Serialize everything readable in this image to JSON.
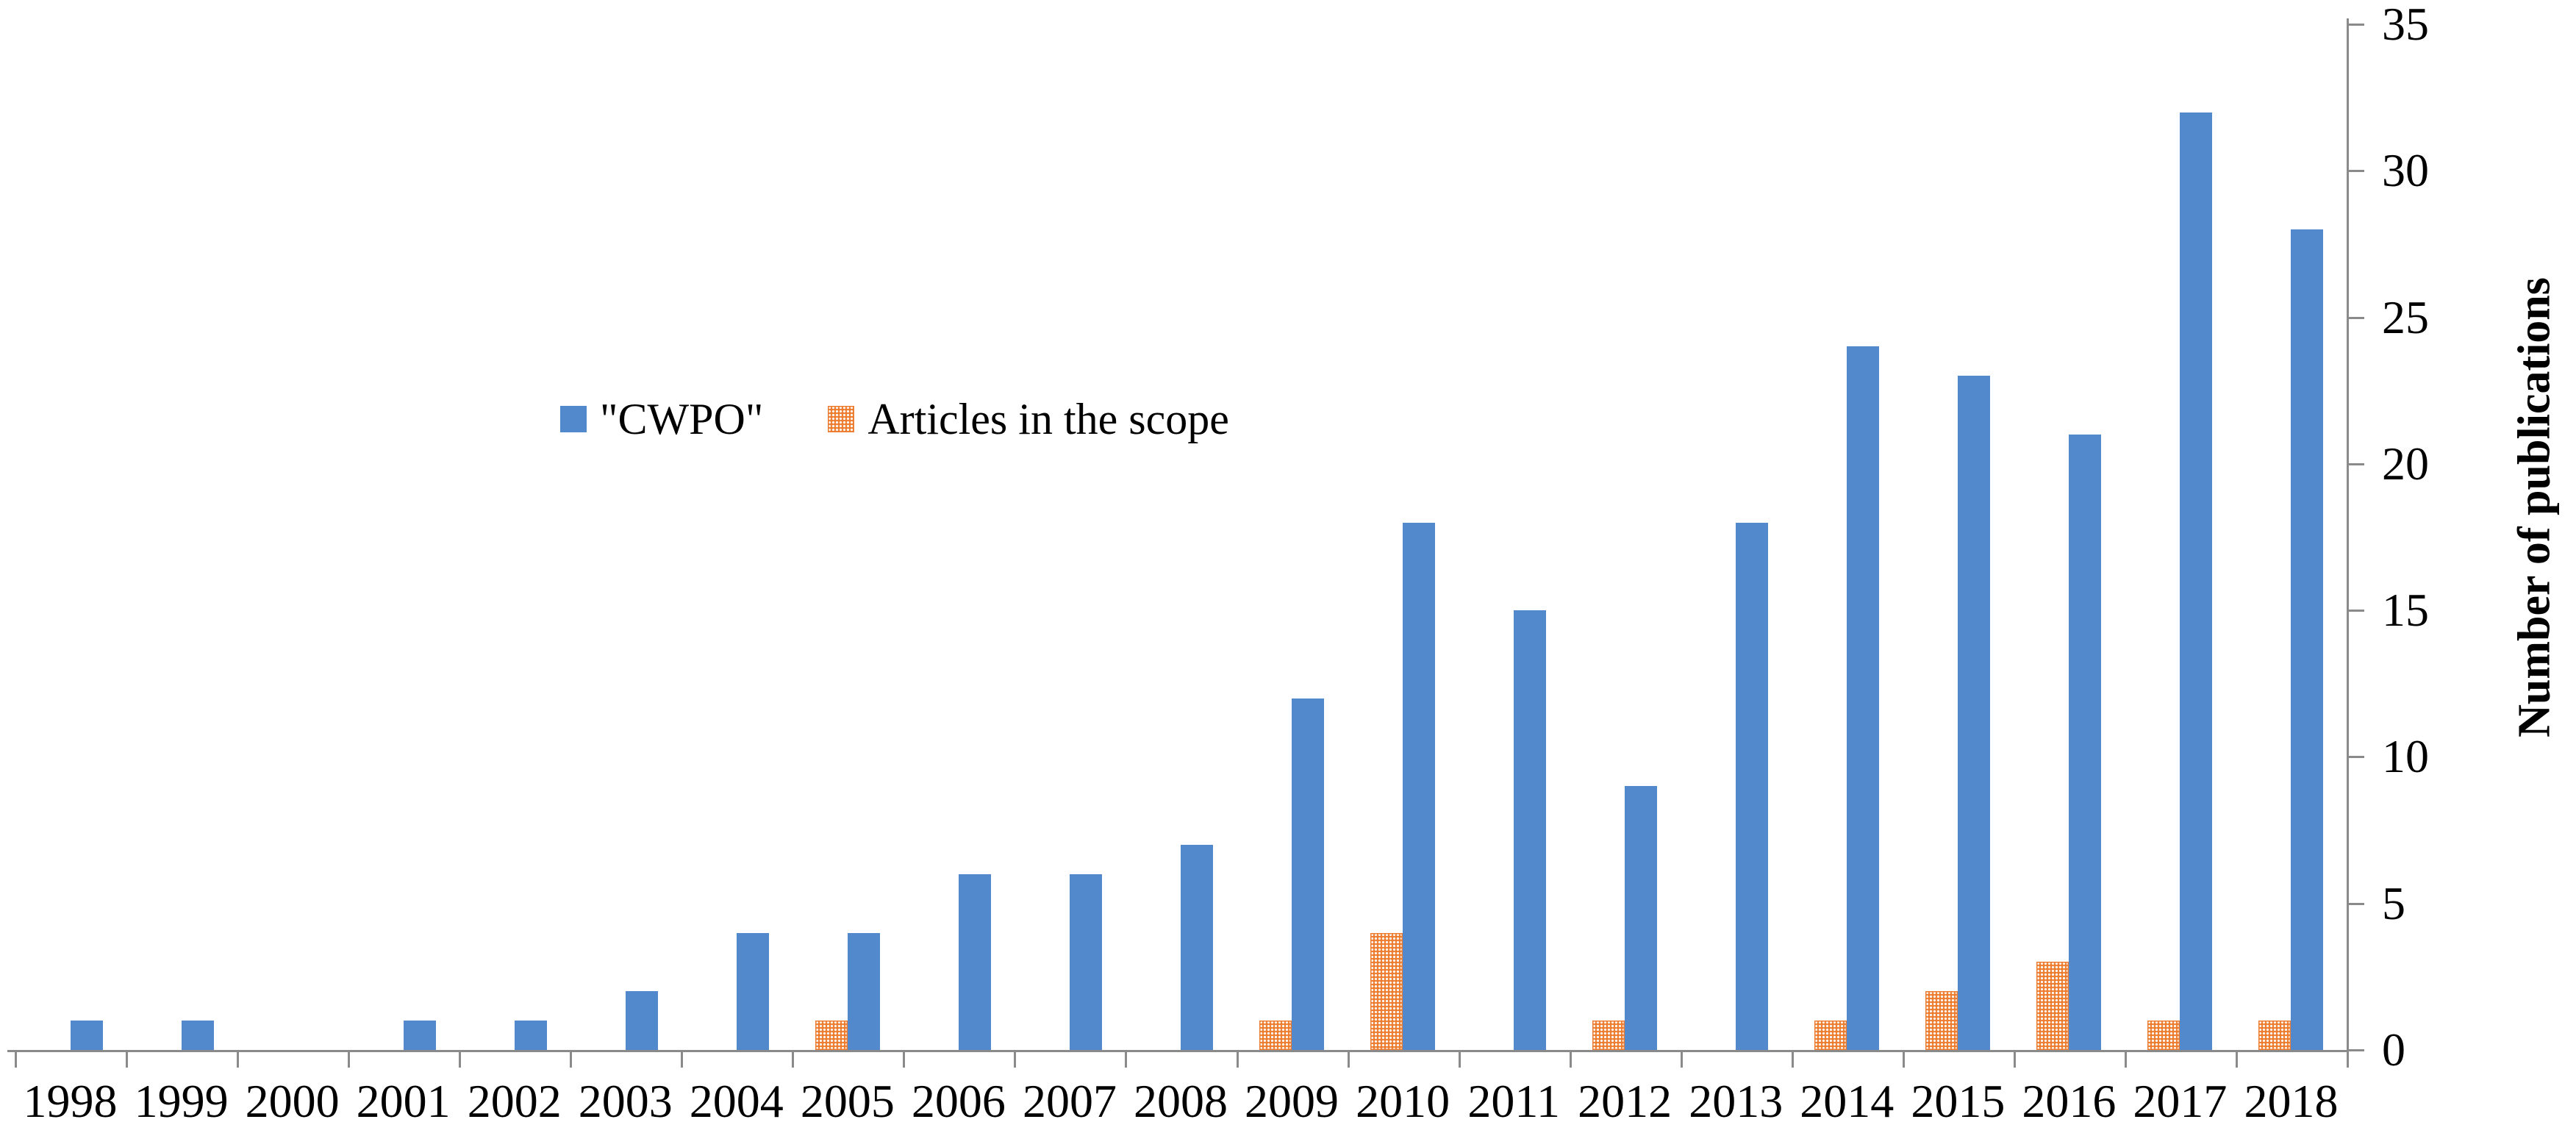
{
  "chart_data": {
    "type": "bar",
    "title": "",
    "categories": [
      "1998",
      "1999",
      "2000",
      "2001",
      "2002",
      "2003",
      "2004",
      "2005",
      "2006",
      "2007",
      "2008",
      "2009",
      "2010",
      "2011",
      "2012",
      "2013",
      "2014",
      "2015",
      "2016",
      "2017",
      "2018"
    ],
    "series": [
      {
        "name": "\"CWPO\"",
        "color": "#5288CC",
        "fill": "solid",
        "values": [
          1,
          1,
          0,
          1,
          1,
          2,
          4,
          4,
          6,
          6,
          7,
          12,
          18,
          15,
          9,
          18,
          24,
          23,
          21,
          32,
          28
        ]
      },
      {
        "name": "Articles in the scope",
        "color": "#ED7D31",
        "fill": "dotted",
        "values": [
          0,
          0,
          0,
          0,
          0,
          0,
          0,
          1,
          0,
          0,
          0,
          1,
          4,
          0,
          1,
          0,
          1,
          2,
          3,
          1,
          1
        ]
      }
    ],
    "xlabel": "",
    "ylabel": "Number of publications",
    "ylim": [
      0,
      35
    ],
    "yticks": [
      0,
      5,
      10,
      15,
      20,
      25,
      30,
      35
    ],
    "grid": false,
    "legend_position": "upper-left-of-center",
    "axis_color": "#8a8a8a",
    "text_color": "#000000"
  }
}
